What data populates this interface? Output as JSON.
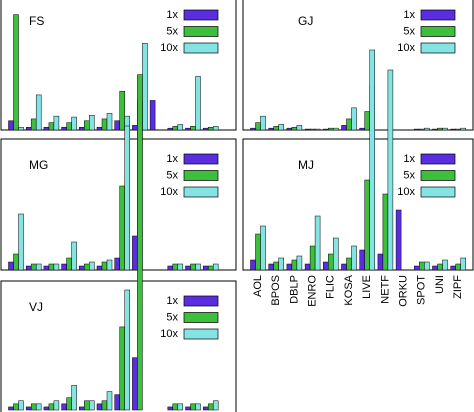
{
  "categories": [
    "AOL",
    "BPOS",
    "DBLP",
    "ENRO",
    "FLIC",
    "KOSA",
    "LIVE",
    "NETF",
    "ORKU",
    "SPOT",
    "UNI",
    "ZIPF"
  ],
  "chart_data": [
    {
      "type": "bar",
      "title": "FS",
      "ylim": [
        0,
        130
      ],
      "series": [
        {
          "name": "1x",
          "color": "#5a2ee0",
          "values": [
            10,
            3,
            3,
            3,
            3,
            3,
            10,
            5,
            32,
            2,
            2,
            2
          ]
        },
        {
          "name": "5x",
          "color": "#3cbf3c",
          "values": [
            125,
            12,
            8,
            8,
            10,
            12,
            42,
            33,
            0,
            4,
            4,
            3
          ]
        },
        {
          "name": "10x",
          "color": "#84e4e4",
          "values": [
            3,
            38,
            15,
            14,
            16,
            18,
            15,
            94,
            0,
            6,
            58,
            4
          ]
        }
      ]
    },
    {
      "type": "bar",
      "title": "GJ",
      "ylim": [
        0,
        130
      ],
      "series": [
        {
          "name": "1x",
          "color": "#5a2ee0",
          "values": [
            2,
            2,
            2,
            1,
            1,
            5,
            2,
            0,
            0,
            1,
            1,
            1
          ]
        },
        {
          "name": "5x",
          "color": "#3cbf3c",
          "values": [
            8,
            4,
            3,
            1,
            2,
            12,
            20,
            0,
            0,
            1,
            2,
            1
          ]
        },
        {
          "name": "10x",
          "color": "#84e4e4",
          "values": [
            15,
            6,
            5,
            1,
            2,
            24,
            48,
            0,
            0,
            2,
            2,
            2
          ]
        }
      ]
    },
    {
      "type": "bar",
      "title": "MG",
      "ylim": [
        0,
        130
      ],
      "series": [
        {
          "name": "1x",
          "color": "#5a2ee0",
          "values": [
            4,
            2,
            2,
            3,
            2,
            2,
            6,
            17,
            0,
            2,
            2,
            2
          ]
        },
        {
          "name": "5x",
          "color": "#3cbf3c",
          "values": [
            8,
            3,
            3,
            6,
            3,
            4,
            42,
            84,
            0,
            3,
            3,
            2
          ]
        },
        {
          "name": "10x",
          "color": "#84e4e4",
          "values": [
            28,
            3,
            3,
            14,
            4,
            5,
            72,
            0,
            0,
            3,
            3,
            3
          ]
        }
      ]
    },
    {
      "type": "bar",
      "title": "MJ",
      "ylim": [
        0,
        130
      ],
      "series": [
        {
          "name": "1x",
          "color": "#5a2ee0",
          "values": [
            5,
            3,
            3,
            3,
            4,
            3,
            10,
            8,
            30,
            2,
            2,
            2
          ]
        },
        {
          "name": "5x",
          "color": "#3cbf3c",
          "values": [
            18,
            4,
            5,
            12,
            8,
            6,
            45,
            38,
            0,
            4,
            3,
            3
          ]
        },
        {
          "name": "10x",
          "color": "#84e4e4",
          "values": [
            22,
            6,
            7,
            27,
            16,
            12,
            110,
            100,
            0,
            4,
            5,
            6
          ]
        }
      ]
    },
    {
      "type": "bar",
      "title": "VJ",
      "ylim": [
        0,
        130
      ],
      "series": [
        {
          "name": "1x",
          "color": "#5a2ee0",
          "values": [
            1,
            1,
            1,
            2,
            1,
            2,
            5,
            17,
            0,
            1,
            1,
            1
          ]
        },
        {
          "name": "5x",
          "color": "#3cbf3c",
          "values": [
            2,
            2,
            2,
            4,
            3,
            3,
            27,
            109,
            0,
            2,
            2,
            2
          ]
        },
        {
          "name": "10x",
          "color": "#84e4e4",
          "values": [
            3,
            2,
            3,
            8,
            3,
            6,
            39,
            0,
            0,
            2,
            2,
            3
          ]
        }
      ]
    }
  ]
}
